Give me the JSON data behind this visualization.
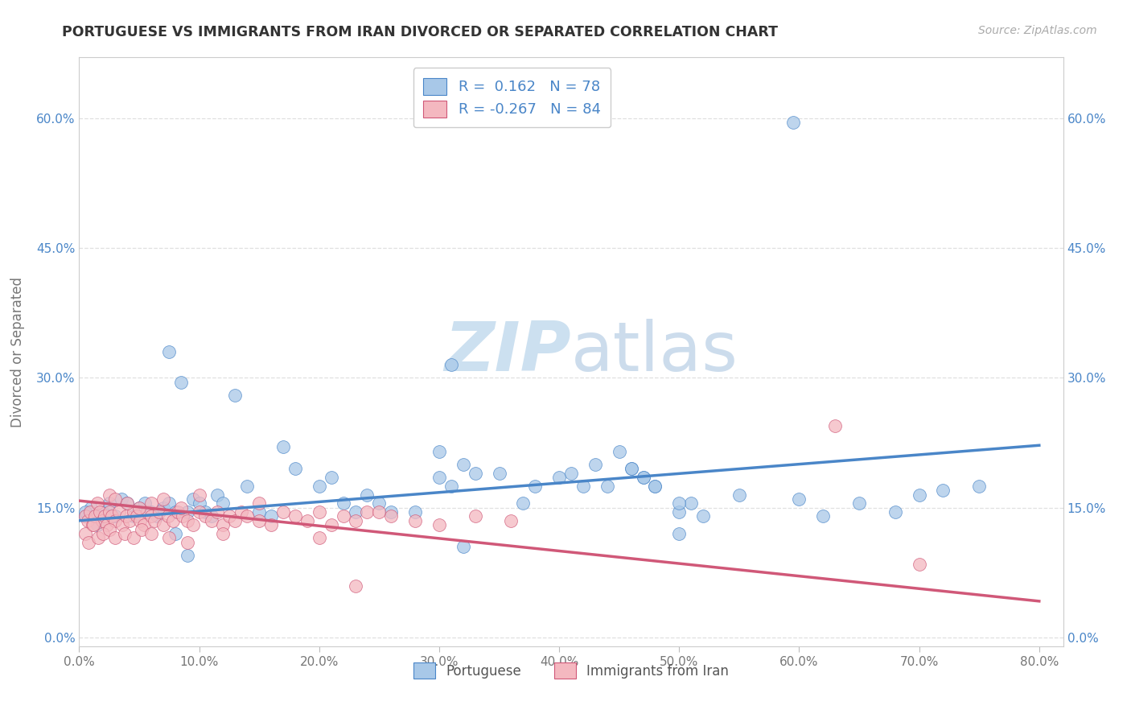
{
  "title": "PORTUGUESE VS IMMIGRANTS FROM IRAN DIVORCED OR SEPARATED CORRELATION CHART",
  "source": "Source: ZipAtlas.com",
  "ylabel": "Divorced or Separated",
  "legend_labels": [
    "Portuguese",
    "Immigrants from Iran"
  ],
  "r_blue": 0.162,
  "n_blue": 78,
  "r_pink": -0.267,
  "n_pink": 84,
  "blue_color": "#a8c8e8",
  "pink_color": "#f4b8c0",
  "blue_line_color": "#4a86c8",
  "pink_line_color": "#d05878",
  "xlim": [
    0.0,
    0.82
  ],
  "ylim": [
    -0.01,
    0.67
  ],
  "ytick_vals": [
    0.0,
    0.15,
    0.3,
    0.45,
    0.6
  ],
  "xtick_vals": [
    0.0,
    0.1,
    0.2,
    0.3,
    0.4,
    0.5,
    0.6,
    0.7,
    0.8
  ],
  "blue_x": [
    0.005,
    0.01,
    0.015,
    0.02,
    0.025,
    0.03,
    0.035,
    0.04,
    0.045,
    0.05,
    0.055,
    0.06,
    0.065,
    0.07,
    0.075,
    0.08,
    0.085,
    0.09,
    0.095,
    0.1,
    0.105,
    0.11,
    0.115,
    0.12,
    0.13,
    0.14,
    0.15,
    0.16,
    0.17,
    0.18,
    0.2,
    0.21,
    0.22,
    0.23,
    0.24,
    0.25,
    0.26,
    0.28,
    0.3,
    0.31,
    0.32,
    0.33,
    0.35,
    0.37,
    0.38,
    0.4,
    0.41,
    0.42,
    0.44,
    0.46,
    0.47,
    0.48,
    0.5,
    0.51,
    0.52,
    0.55,
    0.6,
    0.62,
    0.65,
    0.68,
    0.7,
    0.72,
    0.75,
    0.075,
    0.3,
    0.31,
    0.005,
    0.595,
    0.32,
    0.5,
    0.08,
    0.09,
    0.43,
    0.45,
    0.46,
    0.47,
    0.48,
    0.5
  ],
  "blue_y": [
    0.14,
    0.15,
    0.13,
    0.145,
    0.155,
    0.14,
    0.16,
    0.155,
    0.14,
    0.15,
    0.155,
    0.145,
    0.14,
    0.15,
    0.155,
    0.145,
    0.295,
    0.145,
    0.16,
    0.155,
    0.145,
    0.14,
    0.165,
    0.155,
    0.28,
    0.175,
    0.145,
    0.14,
    0.22,
    0.195,
    0.175,
    0.185,
    0.155,
    0.145,
    0.165,
    0.155,
    0.145,
    0.145,
    0.185,
    0.175,
    0.2,
    0.19,
    0.19,
    0.155,
    0.175,
    0.185,
    0.19,
    0.175,
    0.175,
    0.195,
    0.185,
    0.175,
    0.145,
    0.155,
    0.14,
    0.165,
    0.16,
    0.14,
    0.155,
    0.145,
    0.165,
    0.17,
    0.175,
    0.33,
    0.215,
    0.315,
    0.145,
    0.595,
    0.105,
    0.12,
    0.12,
    0.095,
    0.2,
    0.215,
    0.195,
    0.185,
    0.175,
    0.155
  ],
  "pink_x": [
    0.005,
    0.007,
    0.009,
    0.011,
    0.013,
    0.015,
    0.017,
    0.019,
    0.021,
    0.023,
    0.025,
    0.027,
    0.03,
    0.033,
    0.036,
    0.039,
    0.042,
    0.045,
    0.048,
    0.051,
    0.054,
    0.057,
    0.06,
    0.063,
    0.067,
    0.07,
    0.074,
    0.078,
    0.082,
    0.086,
    0.09,
    0.095,
    0.1,
    0.105,
    0.11,
    0.115,
    0.12,
    0.125,
    0.13,
    0.135,
    0.14,
    0.15,
    0.16,
    0.17,
    0.18,
    0.19,
    0.2,
    0.21,
    0.22,
    0.23,
    0.24,
    0.26,
    0.28,
    0.3,
    0.33,
    0.36,
    0.005,
    0.008,
    0.012,
    0.016,
    0.02,
    0.025,
    0.03,
    0.038,
    0.045,
    0.052,
    0.06,
    0.075,
    0.09,
    0.12,
    0.2,
    0.23,
    0.025,
    0.03,
    0.04,
    0.05,
    0.06,
    0.07,
    0.085,
    0.1,
    0.15,
    0.25,
    0.7,
    0.63
  ],
  "pink_y": [
    0.14,
    0.135,
    0.145,
    0.13,
    0.14,
    0.155,
    0.145,
    0.135,
    0.14,
    0.13,
    0.145,
    0.14,
    0.135,
    0.145,
    0.13,
    0.14,
    0.135,
    0.145,
    0.14,
    0.135,
    0.13,
    0.145,
    0.14,
    0.135,
    0.145,
    0.13,
    0.14,
    0.135,
    0.145,
    0.14,
    0.135,
    0.13,
    0.145,
    0.14,
    0.135,
    0.145,
    0.13,
    0.14,
    0.135,
    0.145,
    0.14,
    0.135,
    0.13,
    0.145,
    0.14,
    0.135,
    0.145,
    0.13,
    0.14,
    0.135,
    0.145,
    0.14,
    0.135,
    0.13,
    0.14,
    0.135,
    0.12,
    0.11,
    0.13,
    0.115,
    0.12,
    0.125,
    0.115,
    0.12,
    0.115,
    0.125,
    0.12,
    0.115,
    0.11,
    0.12,
    0.115,
    0.06,
    0.165,
    0.16,
    0.155,
    0.15,
    0.155,
    0.16,
    0.15,
    0.165,
    0.155,
    0.145,
    0.085,
    0.245
  ],
  "blue_trend_x": [
    0.0,
    0.8
  ],
  "blue_trend_y": [
    0.135,
    0.222
  ],
  "pink_trend_x": [
    0.0,
    0.8
  ],
  "pink_trend_y": [
    0.158,
    0.042
  ],
  "background_color": "#ffffff",
  "grid_color": "#e0e0e0"
}
